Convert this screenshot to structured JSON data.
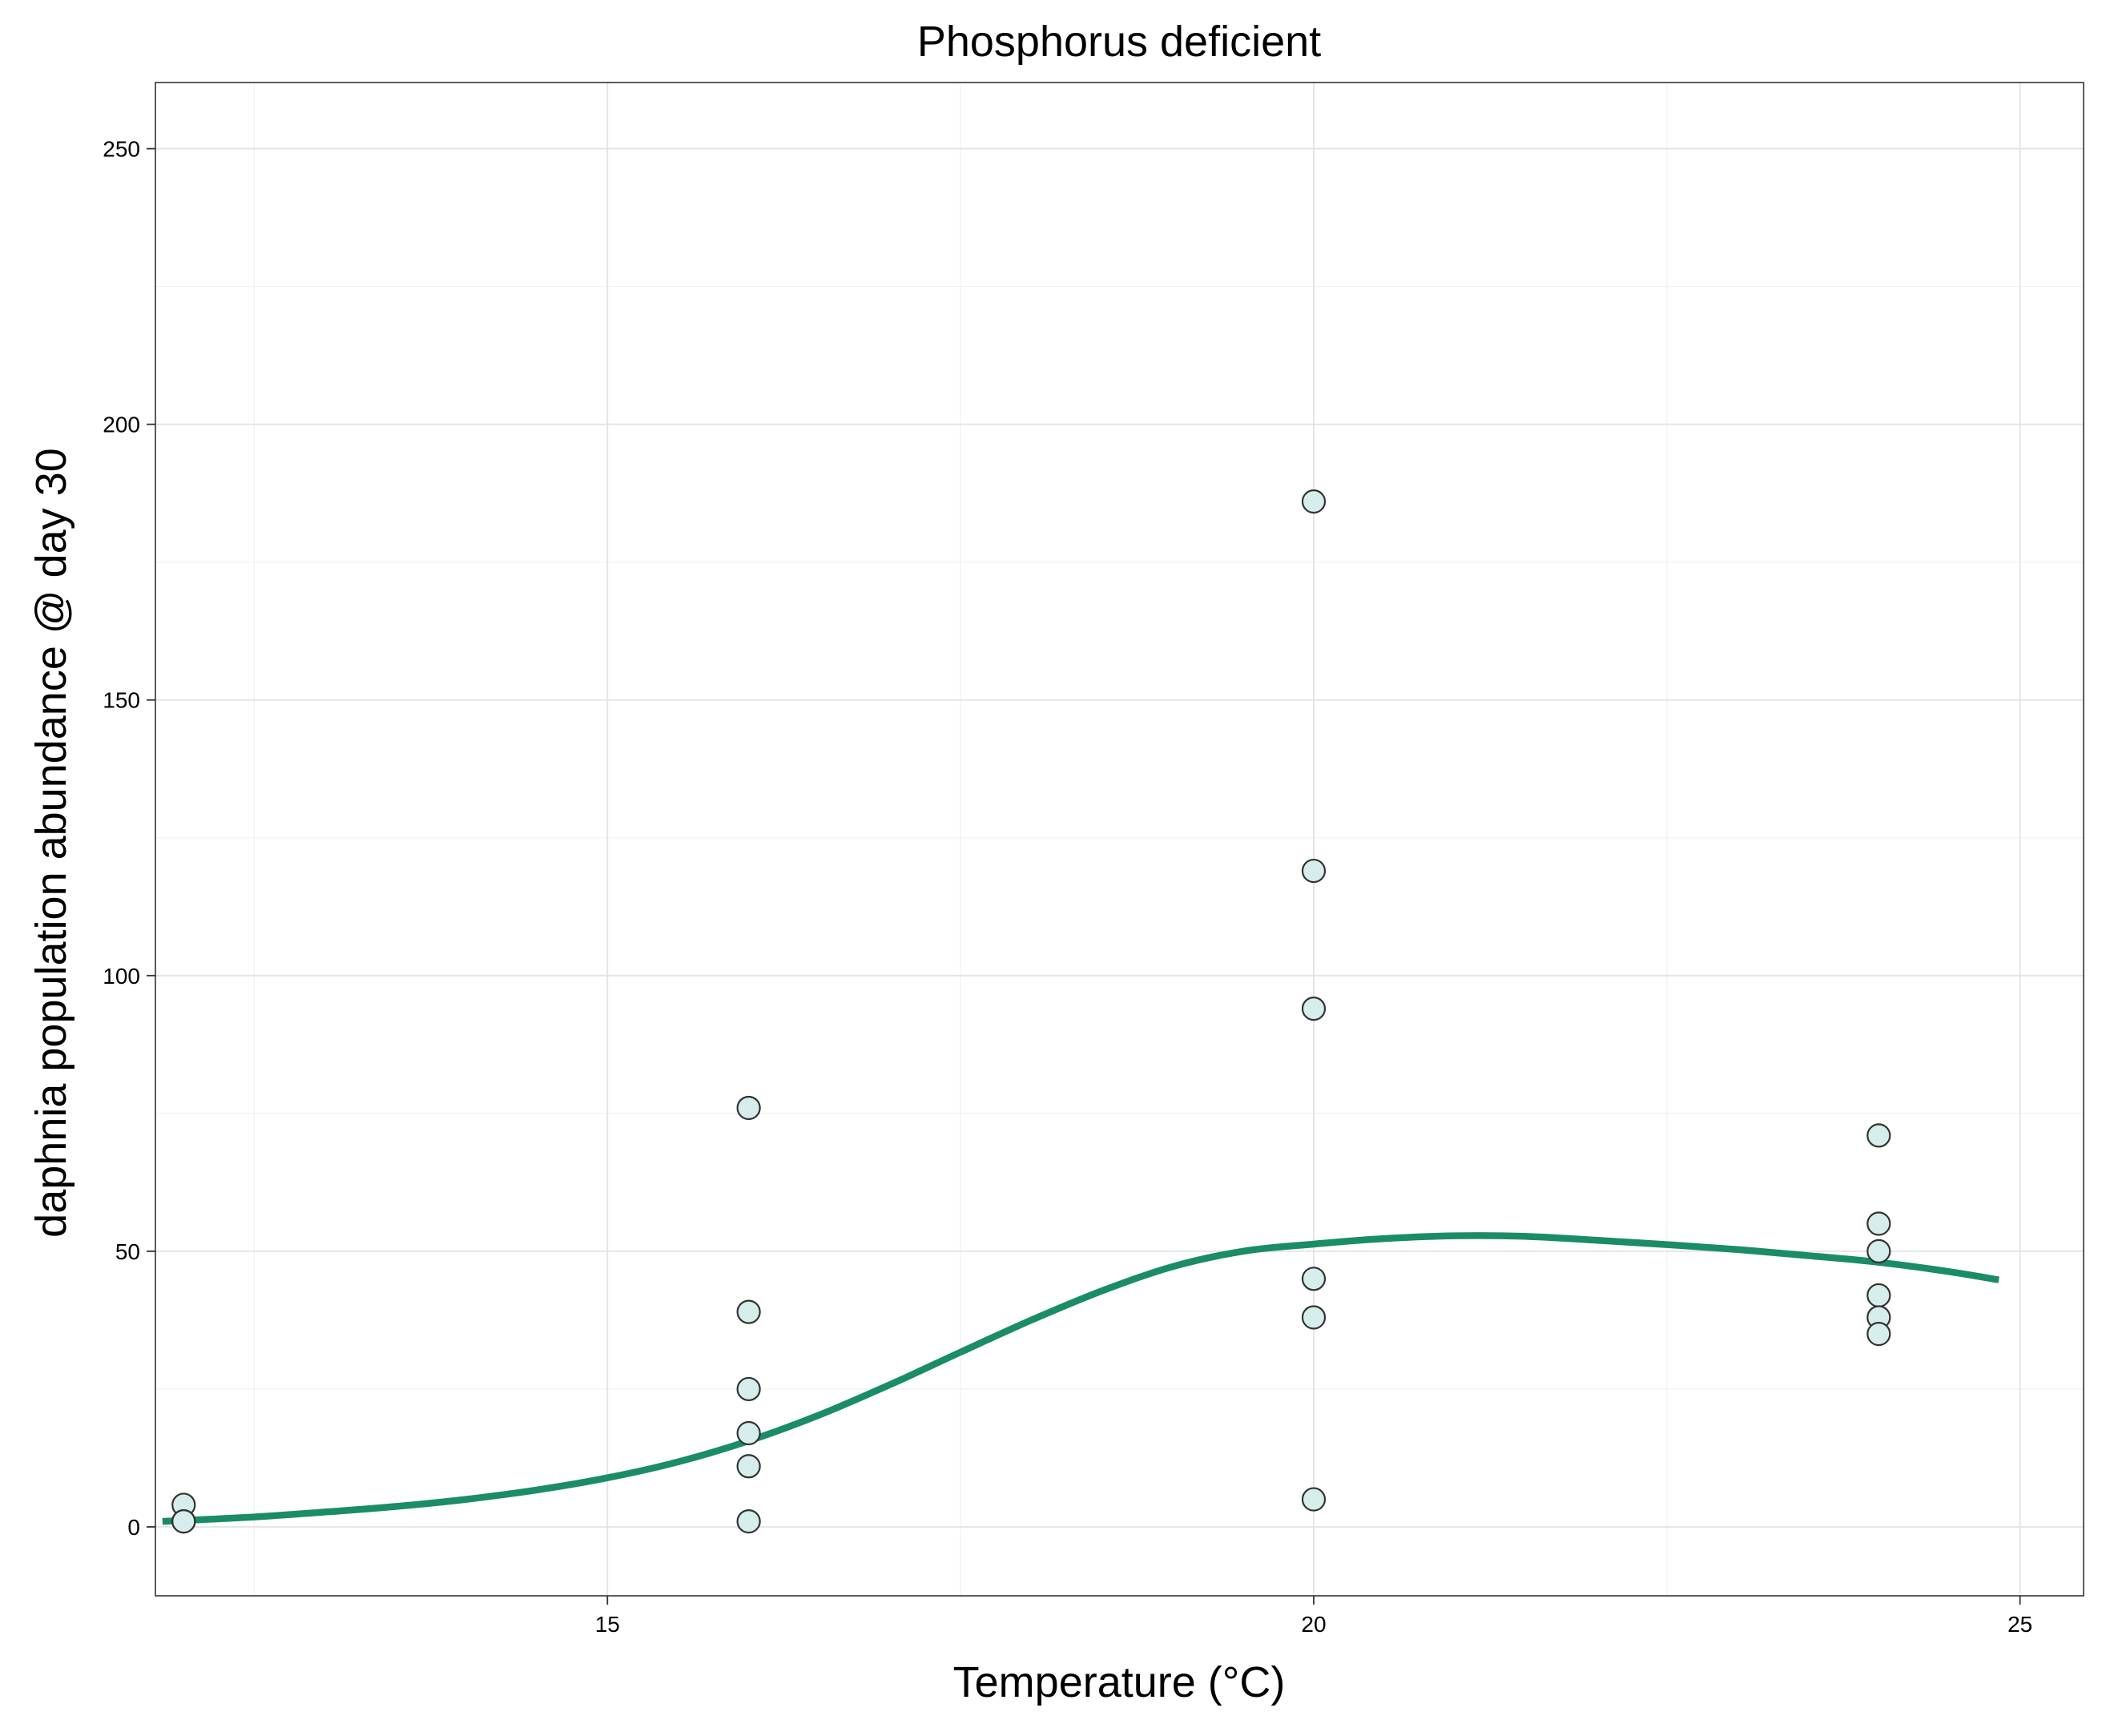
{
  "chart_data": {
    "type": "scatter",
    "title": "Phosphorus deficient",
    "xlabel": "Temperature (°C)",
    "ylabel": "daphnia population abundance @ day 30",
    "xlim": [
      11.8,
      25.45
    ],
    "ylim": [
      -12.5,
      262
    ],
    "x_ticks": [
      15,
      20,
      25
    ],
    "y_ticks": [
      0,
      50,
      100,
      150,
      200,
      250
    ],
    "x_tick_labels": [
      "15",
      "20",
      "25"
    ],
    "y_tick_labels": [
      "0",
      "50",
      "100",
      "150",
      "200",
      "250"
    ],
    "grid": true,
    "legend": "none",
    "points": {
      "x": [
        12,
        12,
        12,
        12,
        16,
        16,
        16,
        16,
        16,
        16,
        20,
        20,
        20,
        20,
        20,
        20,
        24,
        24,
        24,
        24,
        24,
        24
      ],
      "y": [
        4,
        1,
        1,
        1,
        76,
        39,
        25,
        17,
        11,
        1,
        186,
        119,
        94,
        45,
        38,
        5,
        71,
        55,
        50,
        42,
        38,
        35
      ],
      "fill_color": "#d6eeeb",
      "stroke_color": "#333333"
    },
    "fitted_curve": {
      "x": [
        11.85,
        12.5,
        13.0,
        13.5,
        14.0,
        14.5,
        15.0,
        15.5,
        16.0,
        16.5,
        17.0,
        17.5,
        18.0,
        18.5,
        19.0,
        19.5,
        20.0,
        20.5,
        21.0,
        21.5,
        22.0,
        22.5,
        23.0,
        23.5,
        24.0,
        24.5,
        24.85
      ],
      "y": [
        1,
        1.8,
        2.7,
        3.7,
        5.0,
        6.7,
        8.9,
        11.8,
        15.6,
        20.3,
        25.8,
        31.7,
        37.5,
        42.8,
        47.2,
        50.0,
        51.3,
        52.3,
        52.8,
        52.7,
        52.0,
        51.2,
        50.3,
        49.2,
        48.0,
        46.3,
        44.8
      ],
      "color": "#1b8c68"
    }
  }
}
